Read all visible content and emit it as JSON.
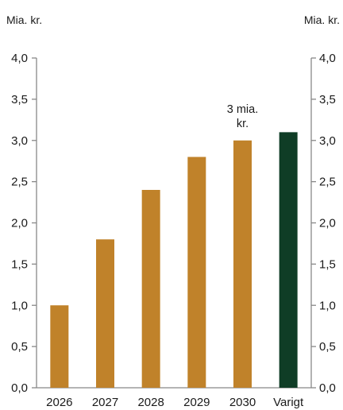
{
  "chart_data": {
    "type": "bar",
    "y_unit_left": "Mia. kr.",
    "y_unit_right": "Mia. kr.",
    "categories": [
      "2026",
      "2027",
      "2028",
      "2029",
      "2030",
      "Varigt"
    ],
    "values": [
      1.0,
      1.8,
      2.4,
      2.8,
      3.0,
      3.1
    ],
    "bar_colors": [
      "#c0822a",
      "#c0822a",
      "#c0822a",
      "#c0822a",
      "#c0822a",
      "#0f3d26"
    ],
    "ylim": [
      0,
      4
    ],
    "yticks": [
      "0,0",
      "0,5",
      "1,0",
      "1,5",
      "2,0",
      "2,5",
      "3,0",
      "3,5",
      "4,0"
    ],
    "ytick_values": [
      0,
      0.5,
      1.0,
      1.5,
      2.0,
      2.5,
      3.0,
      3.5,
      4.0
    ],
    "annotation": {
      "lines": [
        "3 mia.",
        "kr."
      ],
      "category_index": 4
    },
    "grid": false,
    "axis_color": "#888888"
  }
}
